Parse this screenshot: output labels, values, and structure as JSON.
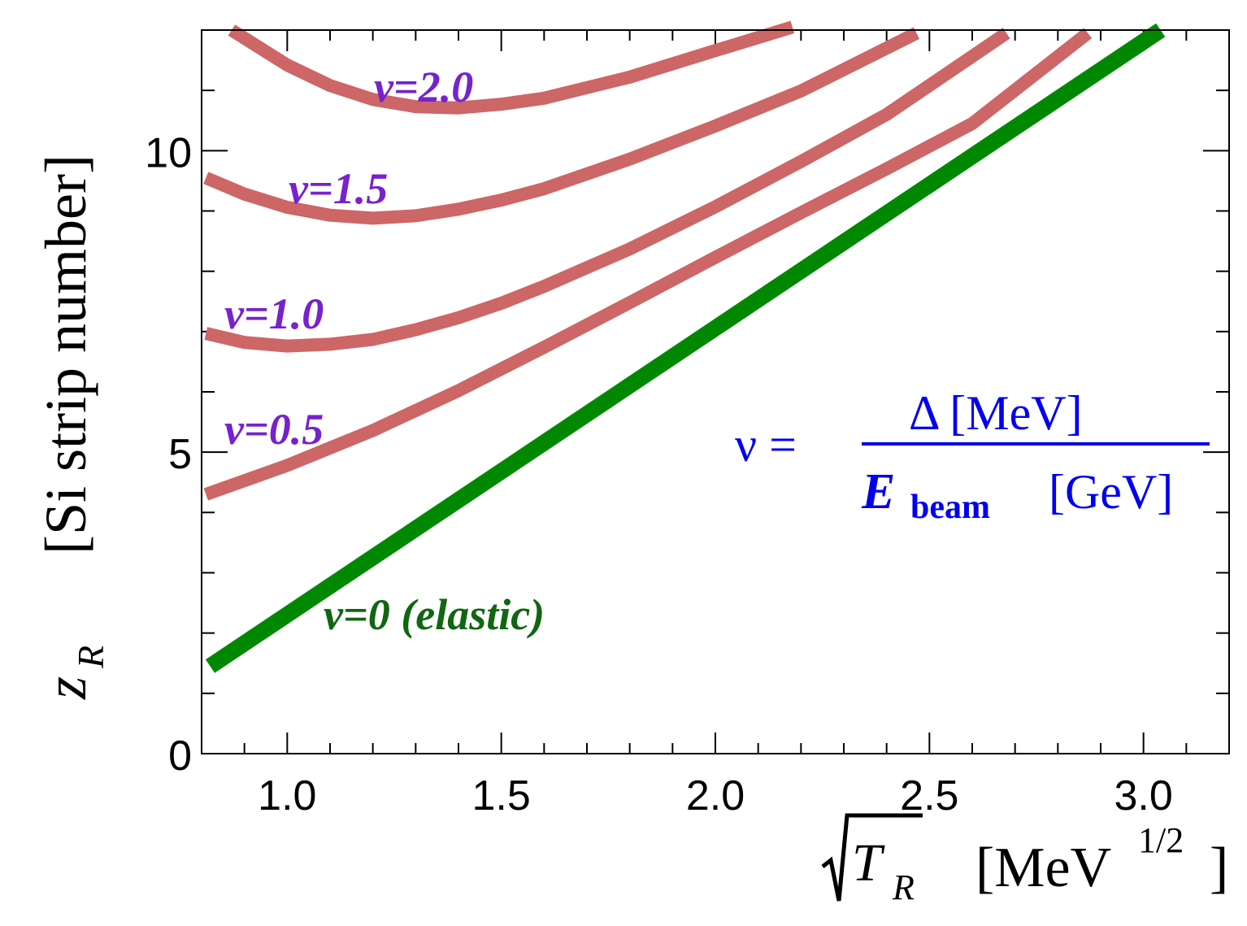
{
  "chart_data": {
    "type": "line",
    "x": {
      "label_main": "T",
      "label_sub": "R",
      "label_units": "[MeV",
      "label_units_sup": "1/2",
      "label_units_close": "]",
      "range": [
        0.8,
        3.2
      ],
      "major_ticks": [
        1.0,
        1.5,
        2.0,
        2.5,
        3.0
      ],
      "tick_labels": [
        "1.0",
        "1.5",
        "2.0",
        "2.5",
        "3.0"
      ],
      "minor_step": 0.1
    },
    "y": {
      "label_var": "z",
      "label_sub": "R",
      "label_text": "[Si strip number]",
      "range": [
        0,
        12
      ],
      "major_ticks": [
        0,
        5,
        10
      ],
      "tick_labels": [
        "0",
        "5",
        "10"
      ],
      "minor_step": 1
    },
    "series": [
      {
        "name": "ν=2.0",
        "color": "#cd6666",
        "x": [
          0.87,
          1.0,
          1.1,
          1.2,
          1.3,
          1.4,
          1.5,
          1.6,
          1.8,
          2.0,
          2.18
        ],
        "y": [
          12.0,
          11.42,
          11.08,
          10.85,
          10.73,
          10.71,
          10.77,
          10.87,
          11.22,
          11.66,
          12.05
        ]
      },
      {
        "name": "ν=1.5",
        "color": "#cd6666",
        "x": [
          0.81,
          0.9,
          1.0,
          1.1,
          1.2,
          1.3,
          1.4,
          1.5,
          1.6,
          1.8,
          2.0,
          2.2,
          2.47
        ],
        "y": [
          9.55,
          9.28,
          9.06,
          8.93,
          8.88,
          8.92,
          9.03,
          9.18,
          9.37,
          9.86,
          10.41,
          10.99,
          11.95
        ]
      },
      {
        "name": "ν=1.0",
        "color": "#cd6666",
        "x": [
          0.81,
          0.9,
          1.0,
          1.1,
          1.2,
          1.3,
          1.4,
          1.5,
          1.6,
          1.8,
          2.0,
          2.2,
          2.4,
          2.68
        ],
        "y": [
          6.97,
          6.82,
          6.76,
          6.79,
          6.87,
          7.03,
          7.23,
          7.47,
          7.75,
          8.37,
          9.07,
          9.82,
          10.6,
          11.95
        ]
      },
      {
        "name": "ν=0.5",
        "color": "#cd6666",
        "x": [
          0.81,
          1.0,
          1.2,
          1.4,
          1.6,
          1.8,
          2.0,
          2.2,
          2.4,
          2.6,
          2.87
        ],
        "y": [
          4.3,
          4.78,
          5.36,
          6.02,
          6.74,
          7.48,
          8.23,
          8.97,
          9.7,
          10.45,
          11.95
        ]
      },
      {
        "name": "ν=0 (elastic)",
        "color": "#008800",
        "x": [
          0.82,
          3.04
        ],
        "y": [
          1.45,
          12.0
        ]
      }
    ],
    "annotations": {
      "nu_2_0": "ν=2.0",
      "nu_1_5": "ν=1.5",
      "nu_1_0": "ν=1.0",
      "nu_0_5": "ν=0.5",
      "nu_0": "ν=0 (elastic)",
      "formula": {
        "lhs": "ν =",
        "numerator": "Δ  [MeV]",
        "denom_var": "E",
        "denom_sub": "beam",
        "denom_units": "[GeV]"
      }
    },
    "colors": {
      "inelastic": "#cd6666",
      "elastic": "#008800",
      "nu_label": "#7722cc",
      "elastic_label": "#116611",
      "formula": "#0000ee",
      "axis": "#000000"
    }
  }
}
